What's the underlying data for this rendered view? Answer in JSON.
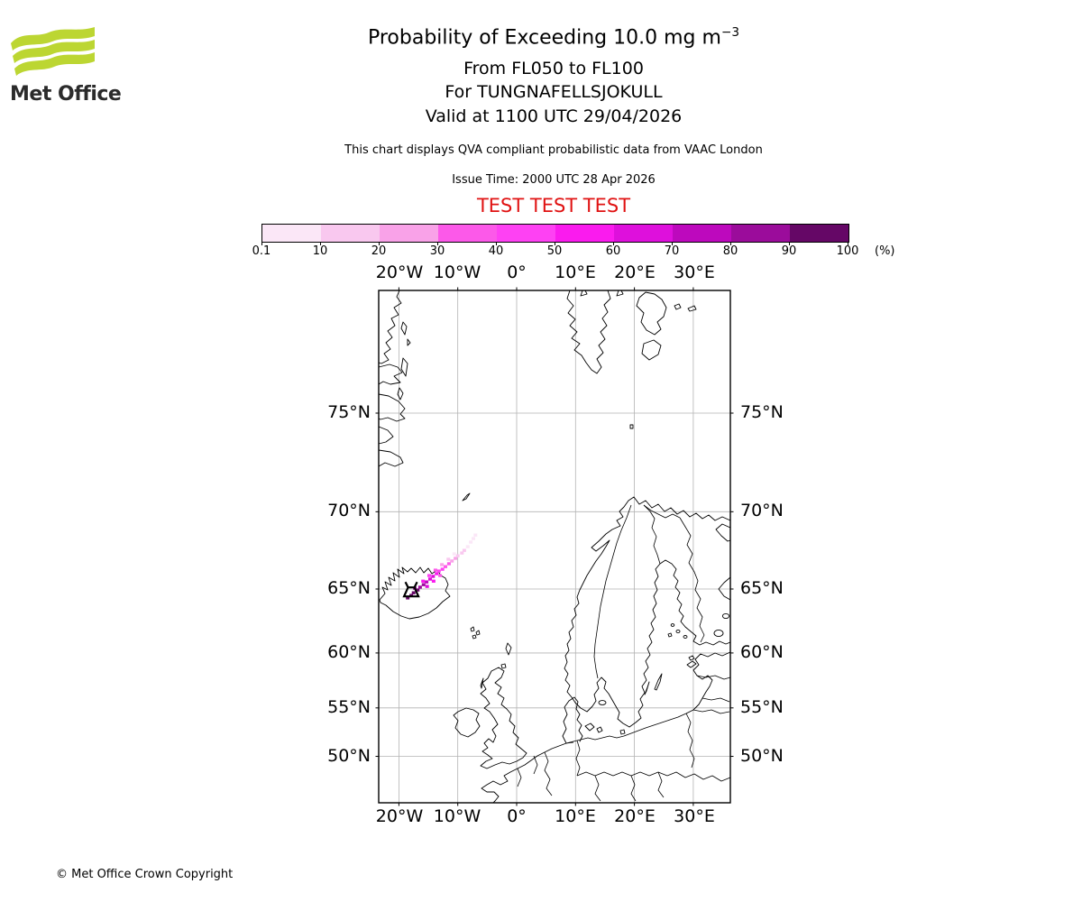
{
  "header": {
    "logo_text": "Met Office",
    "title_main": "Probability of Exceeding 10.0 mg m",
    "title_sup": "−3",
    "subtitle1": "From FL050 to FL100",
    "subtitle2": "For TUNGNAFELLSJOKULL",
    "subtitle3": "Valid at 1100 UTC 29/04/2026",
    "note": "This chart displays QVA compliant probabilistic data from VAAC London",
    "issue_time": "Issue Time: 2000 UTC 28 Apr 2026",
    "test_banner": "TEST TEST TEST"
  },
  "footer": {
    "copyright": "© Met Office Crown Copyright"
  },
  "colorbar": {
    "tick_labels": [
      "0.1",
      "10",
      "20",
      "30",
      "40",
      "50",
      "60",
      "70",
      "80",
      "90",
      "100"
    ],
    "unit_label": "(%)",
    "colors": [
      "#fbe7f7",
      "#f9c8ef",
      "#f9a2e8",
      "#fc59e9",
      "#fe41f3",
      "#fa1bee",
      "#de10dc",
      "#bd09bd",
      "#9b0c9b",
      "#650766"
    ]
  },
  "map": {
    "x_tick_labels": [
      "20°W",
      "10°W",
      "0°",
      "10°E",
      "20°E",
      "30°E"
    ],
    "y_tick_labels": [
      "75°N",
      "70°N",
      "65°N",
      "60°N",
      "55°N",
      "50°N"
    ]
  },
  "chart_data": {
    "type": "heatmap",
    "title": "Probability of Exceeding 10.0 mg m−3",
    "subtitle": "From FL050 to FL100 For TUNGNAFELLSJOKULL Valid at 1100 UTC 29/04/2026",
    "projection": "mercator",
    "lon_range": [
      -23.4,
      36.2
    ],
    "lat_range": [
      44.7,
      79.5
    ],
    "gridlines_lon": [
      -20,
      -10,
      0,
      10,
      20,
      30
    ],
    "gridlines_lat": [
      75,
      70,
      65,
      60,
      55,
      50
    ],
    "grid_on": true,
    "legend_position": "top-colorbar",
    "units": "%",
    "prob_bin_edges": [
      0.1,
      10,
      20,
      30,
      40,
      50,
      60,
      70,
      80,
      90,
      100
    ],
    "bin_colors": [
      "#fbe7f7",
      "#f9c8ef",
      "#f9a2e8",
      "#fc59e9",
      "#fe41f3",
      "#fa1bee",
      "#de10dc",
      "#bd09bd",
      "#9b0c9b",
      "#650766"
    ],
    "volcano": {
      "name": "TUNGNAFELLSJOKULL",
      "lon": -17.9,
      "lat": 64.73
    },
    "plume_cells": [
      [
        -18.5,
        64.35,
        9
      ],
      [
        -17.9,
        64.54,
        9
      ],
      [
        -17.5,
        64.73,
        9
      ],
      [
        -16.8,
        64.93,
        9
      ],
      [
        -16.4,
        65.13,
        8
      ],
      [
        -17.3,
        65.06,
        8
      ],
      [
        -15.8,
        65.31,
        8
      ],
      [
        -15.3,
        65.5,
        7
      ],
      [
        -14.7,
        65.7,
        6
      ],
      [
        -14.2,
        65.89,
        6
      ],
      [
        -15.2,
        65.19,
        6
      ],
      [
        -13.6,
        66.08,
        5
      ],
      [
        -15.9,
        65.56,
        5
      ],
      [
        -14.1,
        65.56,
        5
      ],
      [
        -13.2,
        66.26,
        4
      ],
      [
        -12.6,
        66.38,
        4
      ],
      [
        -14.85,
        65.95,
        4
      ],
      [
        -12.1,
        66.56,
        3
      ],
      [
        -11.5,
        66.75,
        3
      ],
      [
        -13.8,
        66.32,
        3
      ],
      [
        -13.0,
        65.95,
        3
      ],
      [
        -11.0,
        66.93,
        2
      ],
      [
        -10.4,
        67.11,
        2
      ],
      [
        -12.7,
        66.69,
        2
      ],
      [
        -10.0,
        67.28,
        1
      ],
      [
        -9.3,
        67.46,
        1
      ],
      [
        -8.9,
        67.63,
        1
      ],
      [
        -11.6,
        67.05,
        1
      ],
      [
        -8.3,
        67.87,
        0
      ],
      [
        -7.8,
        68.16,
        0
      ],
      [
        -7.35,
        68.38,
        0
      ],
      [
        -7.0,
        68.6,
        0
      ],
      [
        -10.6,
        67.4,
        0
      ]
    ]
  }
}
